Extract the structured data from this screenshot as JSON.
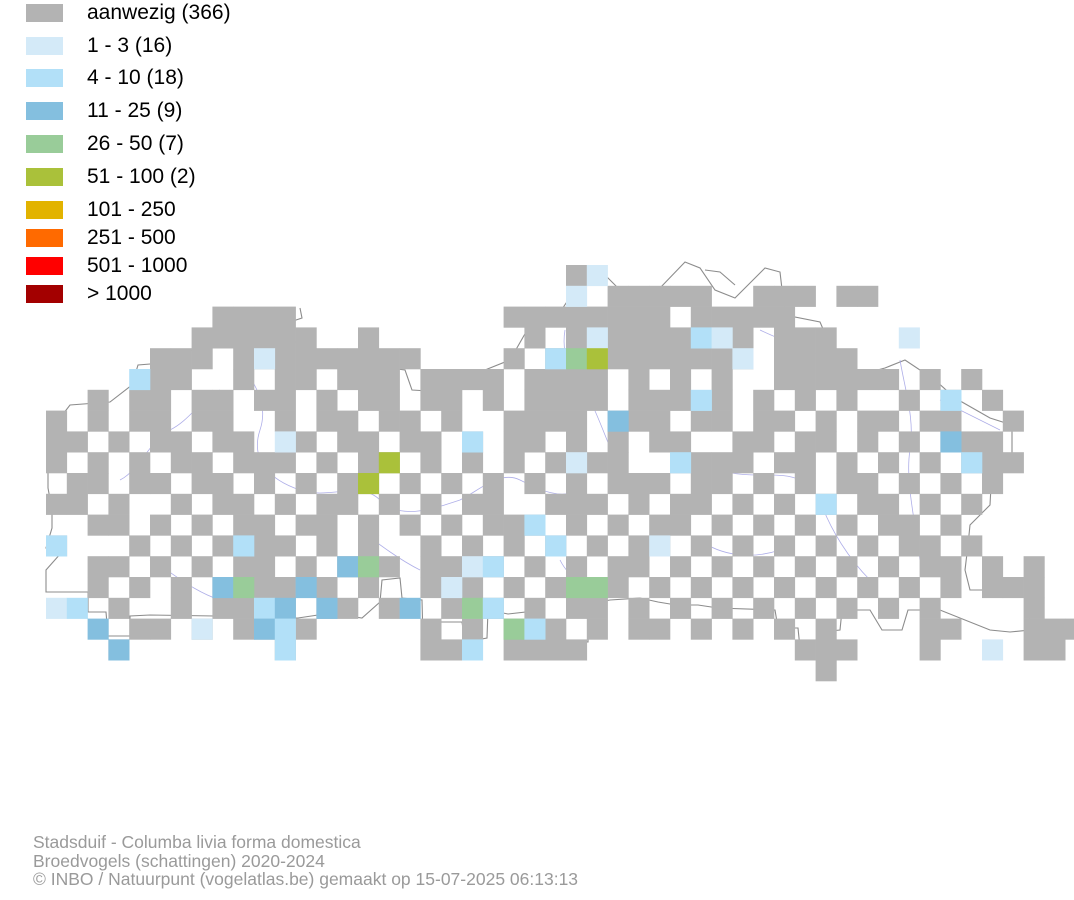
{
  "legend": {
    "items": [
      {
        "label": "aanwezig (366)",
        "color": "#b3b3b3"
      },
      {
        "label": "1 - 3 (16)",
        "color": "#d4eaf8"
      },
      {
        "label": "4 - 10 (18)",
        "color": "#b2e0f8"
      },
      {
        "label": "11 - 25 (9)",
        "color": "#84bfdf"
      },
      {
        "label": "26 - 50 (7)",
        "color": "#99cc99"
      },
      {
        "label": "51 - 100 (2)",
        "color": "#aac13a"
      },
      {
        "label": "101 - 250",
        "color": "#e2b300"
      },
      {
        "label": "251 - 500",
        "color": "#ff6a00"
      },
      {
        "label": "501 - 1000",
        "color": "#ff0000"
      },
      {
        "label": "> 1000",
        "color": "#a30000"
      }
    ]
  },
  "footer": {
    "line1": "Stadsduif - Columba livia forma domestica",
    "line2": "Broedvogels (schattingen) 2020-2024",
    "line3": "© INBO / Natuurpunt (vogelatlas.be) gemaakt op 15-07-2025 06:13:13"
  },
  "map": {
    "region": "Flanders",
    "border_color": "#8c8c8c",
    "river_color": "#a6a6e6"
  }
}
